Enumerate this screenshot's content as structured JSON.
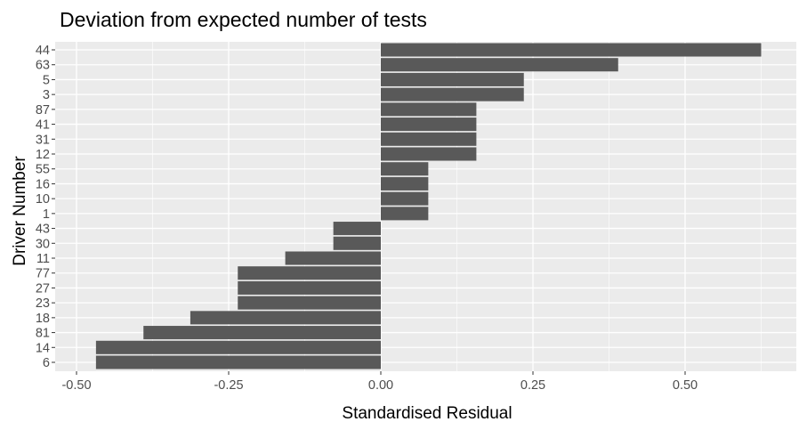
{
  "chart_data": {
    "type": "bar",
    "orientation": "horizontal",
    "title": "Deviation from expected number of tests",
    "xlabel": "Standardised Residual",
    "ylabel": "Driver Number",
    "categories": [
      "44",
      "63",
      "5",
      "3",
      "87",
      "41",
      "31",
      "12",
      "55",
      "16",
      "10",
      "1",
      "43",
      "30",
      "11",
      "77",
      "27",
      "23",
      "18",
      "81",
      "14",
      "6"
    ],
    "values": [
      0.625,
      0.39,
      0.235,
      0.235,
      0.157,
      0.157,
      0.157,
      0.157,
      0.078,
      0.078,
      0.078,
      0.078,
      -0.078,
      -0.078,
      -0.157,
      -0.235,
      -0.235,
      -0.235,
      -0.313,
      -0.39,
      -0.468,
      -0.468
    ],
    "xlim": [
      -0.5,
      0.68
    ],
    "x_ticks": [
      -0.5,
      -0.25,
      0.0,
      0.25,
      0.5
    ],
    "x_tick_labels": [
      "-0.50",
      "-0.25",
      "0.00",
      "0.25",
      "0.50"
    ],
    "grid": true,
    "colors": {
      "bar": "#595959",
      "panel": "#ebebeb",
      "grid": "#ffffff"
    }
  }
}
